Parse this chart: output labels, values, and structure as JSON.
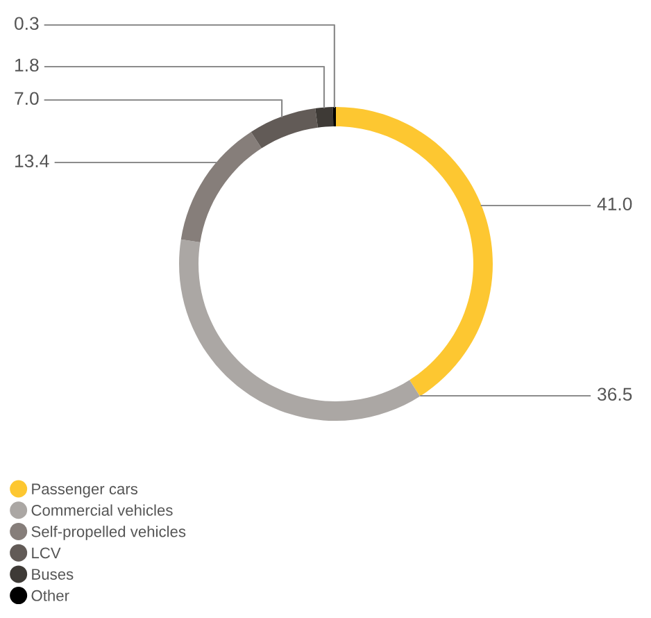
{
  "chart_data": {
    "type": "donut",
    "categories": [
      "Passenger cars",
      "Commercial vehicles",
      "Self-propelled vehicles",
      "LCV",
      "Buses",
      "Other"
    ],
    "values": [
      41.0,
      36.5,
      13.4,
      7.0,
      1.8,
      0.3
    ],
    "colors": [
      "#fdc731",
      "#aba7a4",
      "#867e7a",
      "#625b57",
      "#3e3a36",
      "#000000"
    ],
    "value_labels": [
      "41.0",
      "36.5",
      "13.4",
      "7.0",
      "1.8",
      "0.3"
    ],
    "legend": "bottom left"
  }
}
